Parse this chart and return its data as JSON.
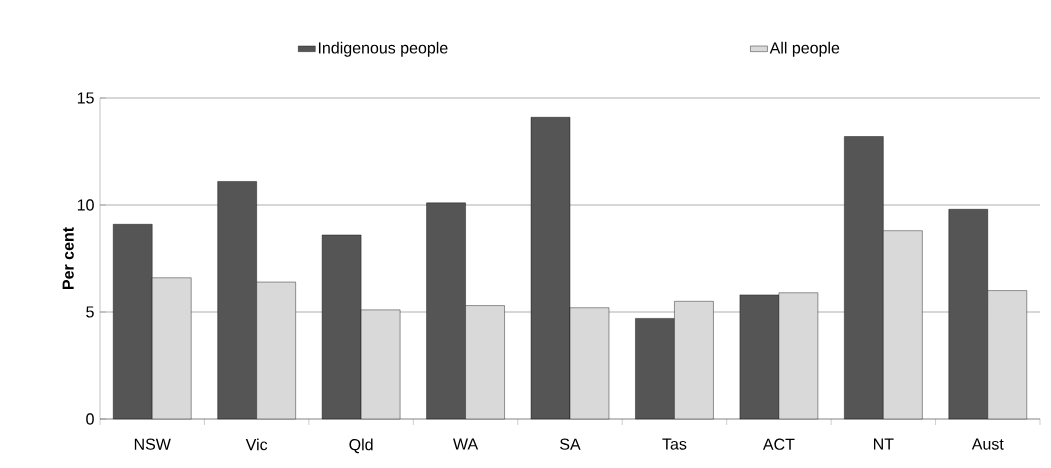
{
  "chart_data": {
    "type": "bar",
    "ylabel": "Per cent",
    "categories": [
      "NSW",
      "Vic",
      "Qld",
      "WA",
      "SA",
      "Tas",
      "ACT",
      "NT",
      "Aust"
    ],
    "series": [
      {
        "name": "Indigenous people",
        "color": "#555555",
        "values": [
          9.1,
          11.1,
          8.6,
          10.1,
          14.1,
          4.7,
          5.8,
          13.2,
          9.8
        ]
      },
      {
        "name": "All people",
        "color": "#d9d9d9",
        "values": [
          6.6,
          6.4,
          5.1,
          5.3,
          5.2,
          5.5,
          5.9,
          8.8,
          6.0
        ]
      }
    ],
    "ylim": [
      0,
      15
    ],
    "yticks": [
      0,
      5,
      10,
      15
    ],
    "grid": "y",
    "legend": "top"
  }
}
